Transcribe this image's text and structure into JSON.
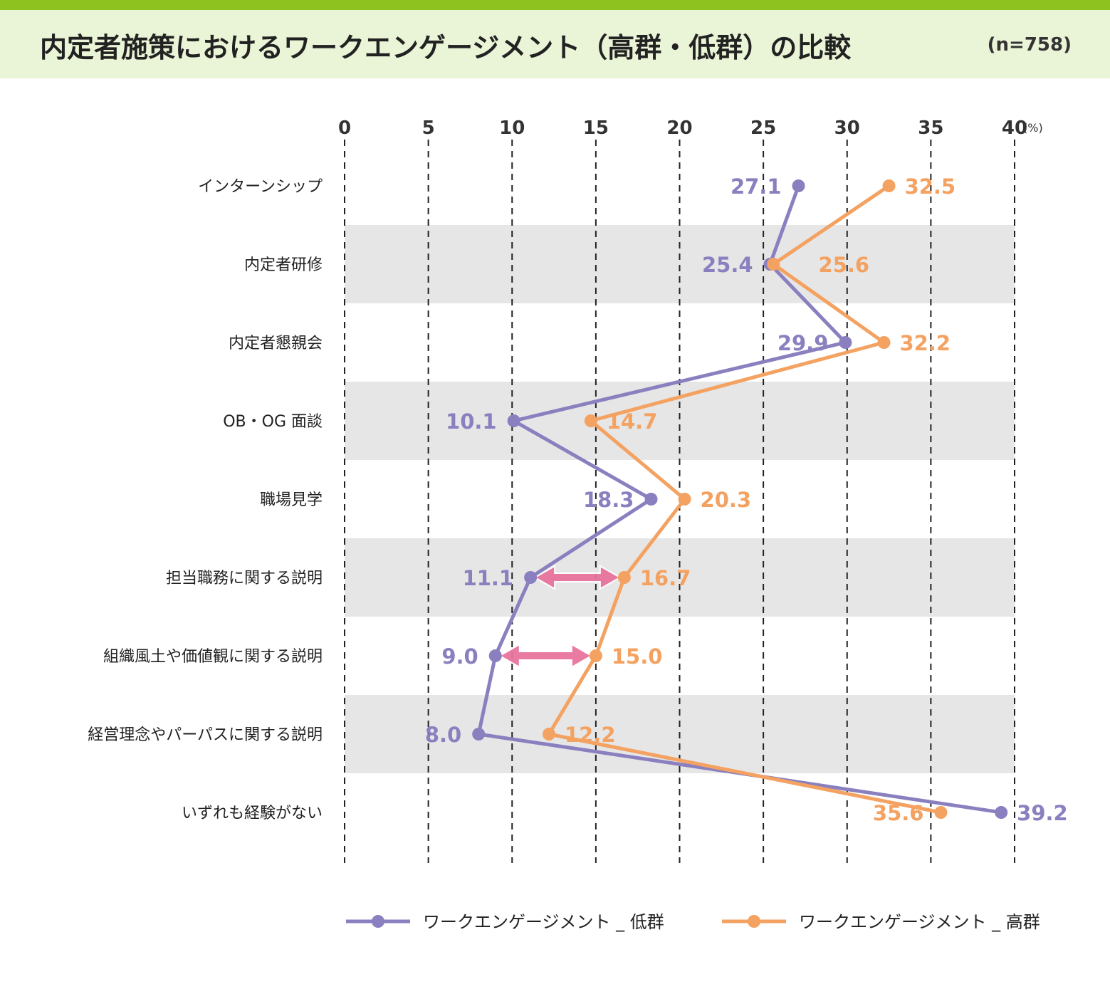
{
  "header": {
    "title": "内定者施策におけるワークエンゲージメント（高群・低群）の比較",
    "n": "(n=758)",
    "accent_color": "#8dc21f",
    "band_color": "#eaf4d6"
  },
  "chart_data": {
    "type": "line",
    "orientation": "horizontal",
    "unit": "(%)",
    "xlim": [
      0,
      40
    ],
    "xticks": [
      0,
      5,
      10,
      15,
      20,
      25,
      30,
      35,
      40
    ],
    "grid": "dashed vertical",
    "legend_position": "bottom",
    "categories": [
      "インターンシップ",
      "内定者研修",
      "内定者懇親会",
      "OB・OG 面談",
      "職場見学",
      "担当職務に関する説明",
      "組織風土や価値観に関する説明",
      "経営理念やパーパスに関する説明",
      "いずれも経験がない"
    ],
    "series": [
      {
        "name": "ワークエンゲージメント _ 低群",
        "color": "#8a80bf",
        "values": [
          27.1,
          25.4,
          29.9,
          10.1,
          18.3,
          11.1,
          9.0,
          8.0,
          39.2
        ],
        "labels": [
          "27.1",
          "25.4",
          "29.9",
          "10.1",
          "18.3",
          "11.1",
          "9.0",
          "8.0",
          "39.2"
        ]
      },
      {
        "name": "ワークエンゲージメント _ 高群",
        "color": "#f4a261",
        "values": [
          32.5,
          25.6,
          32.2,
          14.7,
          20.3,
          16.7,
          15.0,
          12.2,
          35.6
        ],
        "labels": [
          "32.5",
          "25.6",
          "32.2",
          "14.7",
          "20.3",
          "16.7",
          "15.0",
          "12.2",
          "35.6"
        ]
      }
    ],
    "highlight_arrows": [
      {
        "category": "担当職務に関する説明",
        "color": "#e8739d"
      },
      {
        "category": "組織風土や価値観に関する説明",
        "color": "#e8739d"
      }
    ]
  }
}
